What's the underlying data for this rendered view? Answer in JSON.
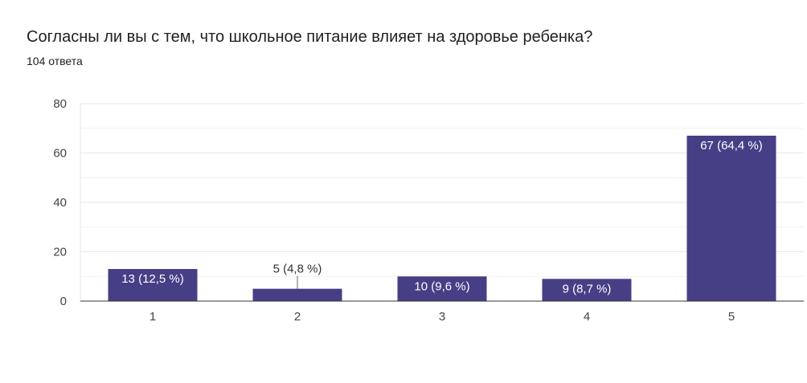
{
  "question": {
    "title": "Согласны ли вы с тем, что школьное питание влияет на здоровье ребенка?",
    "responses": "104 ответа"
  },
  "colors": {
    "bar": "#473f86",
    "grid": "#e6e6e6",
    "minor_grid": "#f1f1f1",
    "axis": "#333333"
  },
  "chart_data": {
    "type": "bar",
    "title": "Согласны ли вы с тем, что школьное питание влияет на здоровье ребенка?",
    "subtitle": "104 ответа",
    "categories": [
      "1",
      "2",
      "3",
      "4",
      "5"
    ],
    "values": [
      13,
      5,
      10,
      9,
      67
    ],
    "data_labels": [
      "13 (12,5 %)",
      "5 (4,8 %)",
      "10 (9,6 %)",
      "9 (8,7 %)",
      "67 (64,4 %)"
    ],
    "xlabel": "",
    "ylabel": "",
    "ylim": [
      0,
      80
    ],
    "yticks": [
      0,
      20,
      40,
      60,
      80
    ],
    "grid": true,
    "legend": "none"
  }
}
